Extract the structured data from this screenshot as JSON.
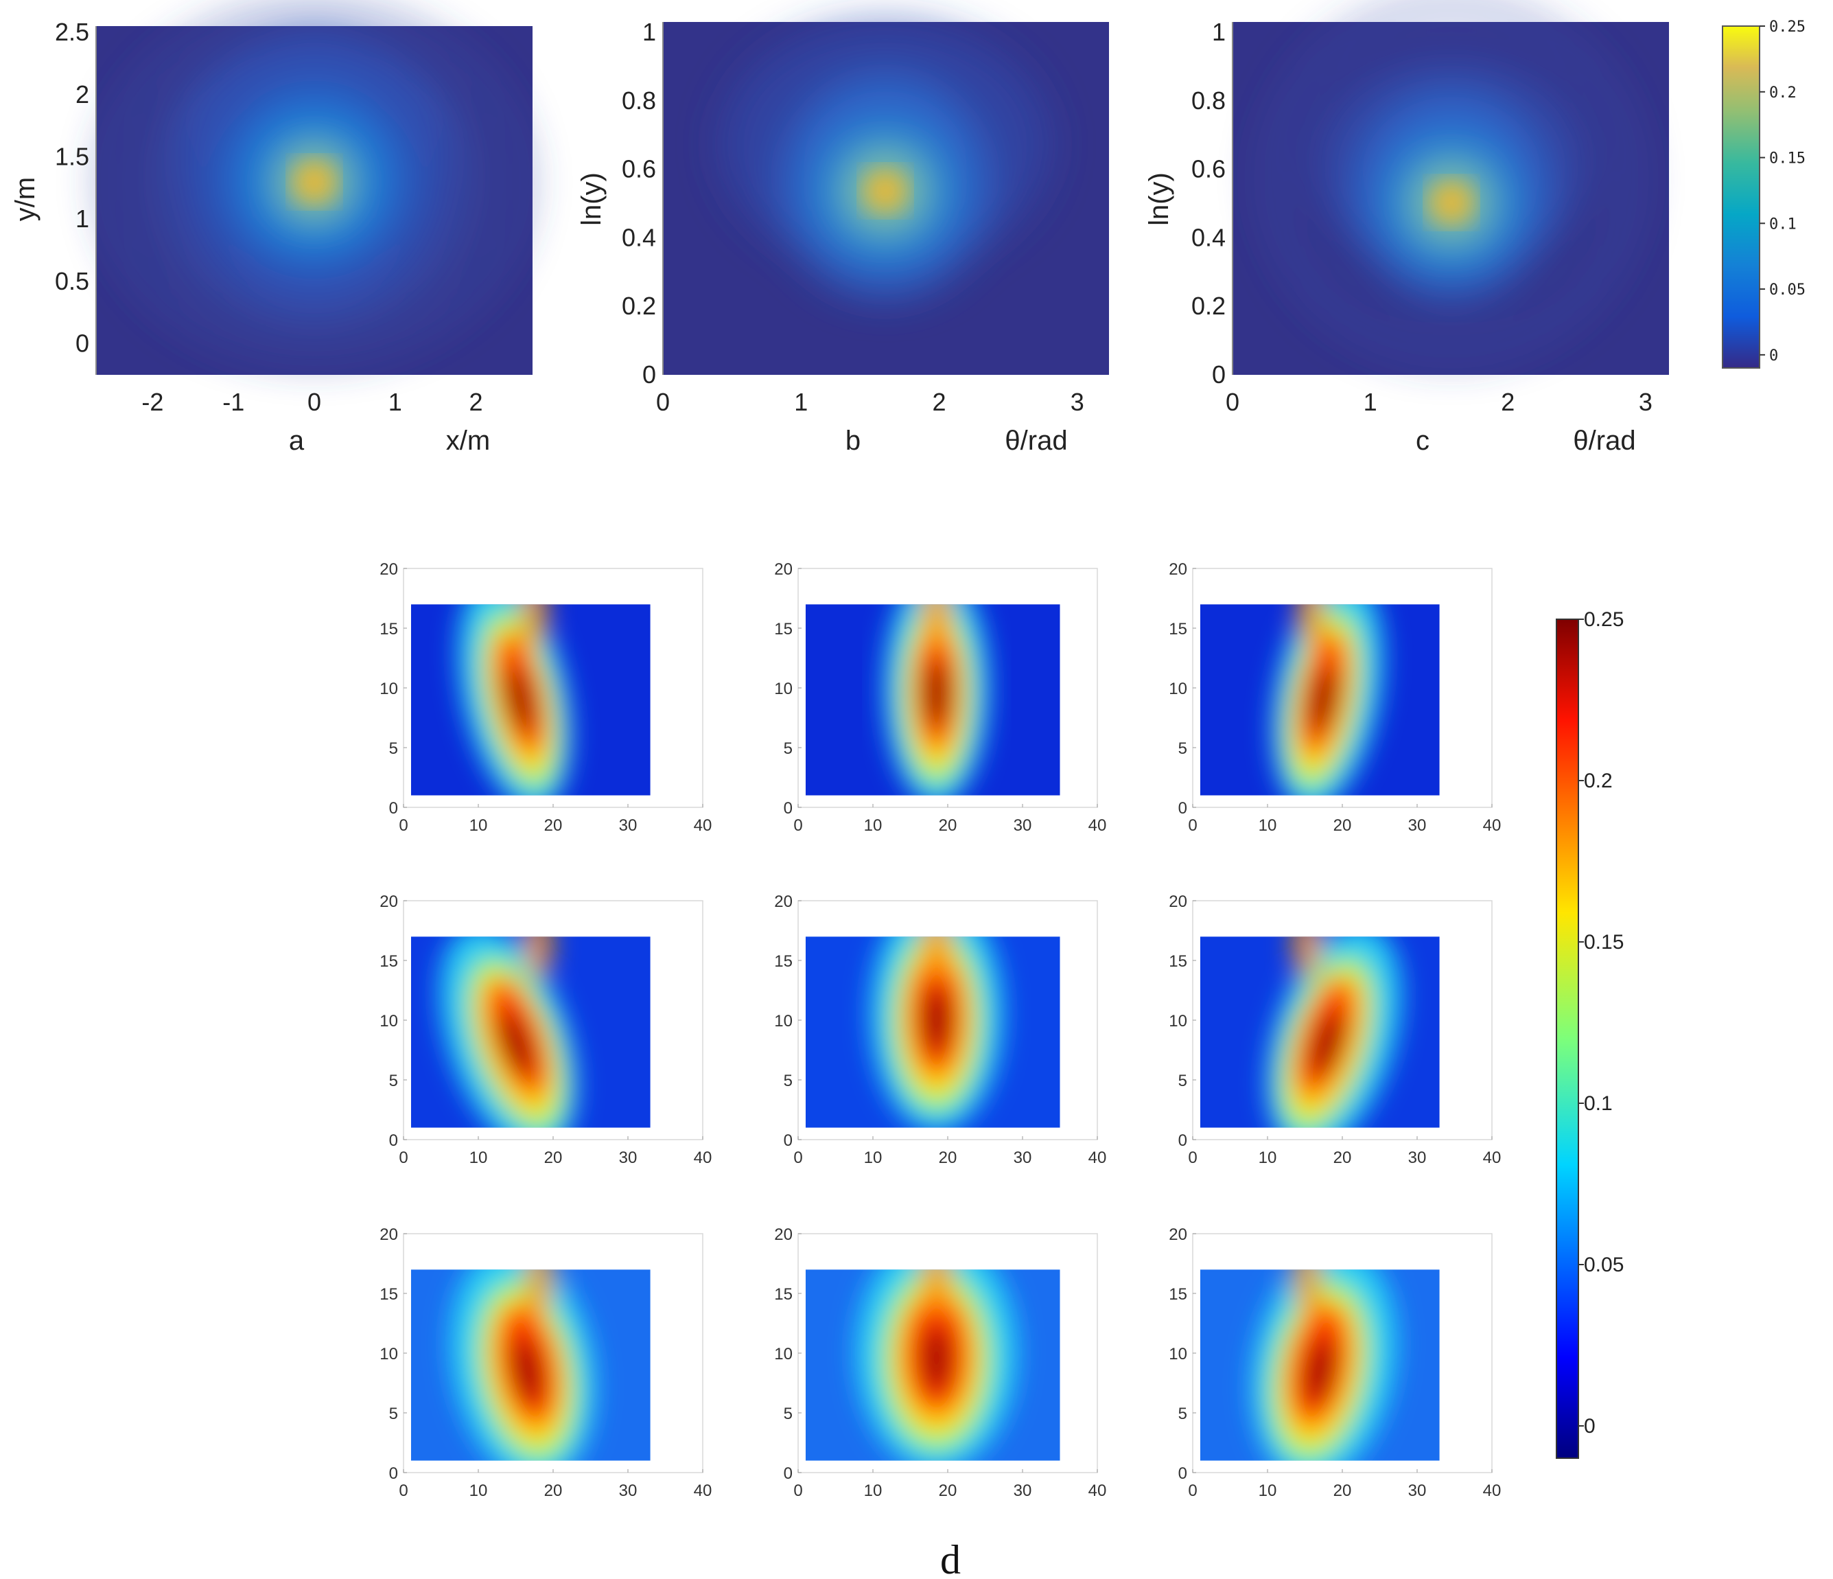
{
  "chart_data": [
    {
      "type": "heatmap",
      "panel": "a",
      "xlabel": "x/m",
      "ylabel": "y/m",
      "x_ticks": [
        "-2",
        "-1",
        "0",
        "1",
        "2"
      ],
      "y_ticks": [
        "0",
        "0.5",
        "1",
        "1.5",
        "2",
        "2.5"
      ],
      "xlim": [
        -2.7,
        2.7
      ],
      "ylim": [
        -0.25,
        2.55
      ],
      "peak": {
        "x": 0.0,
        "y": 1.35,
        "value": 0.22
      },
      "pattern": "concentric rings"
    },
    {
      "type": "heatmap",
      "panel": "b",
      "xlabel": "θ/rad",
      "ylabel": "ln(y)",
      "x_ticks": [
        "0",
        "1",
        "2",
        "3"
      ],
      "y_ticks": [
        "0",
        "0.2",
        "0.4",
        "0.6",
        "0.8",
        "1"
      ],
      "xlim": [
        0,
        3.23
      ],
      "ylim": [
        0,
        1.03
      ],
      "peak": {
        "x": 1.6,
        "y": 0.54,
        "value": 0.21
      }
    },
    {
      "type": "heatmap",
      "panel": "c",
      "xlabel": "θ/rad",
      "ylabel": "ln(y)",
      "x_ticks": [
        "0",
        "1",
        "2",
        "3"
      ],
      "y_ticks": [
        "0",
        "0.2",
        "0.4",
        "0.6",
        "0.8",
        "1"
      ],
      "xlim": [
        0,
        3.17
      ],
      "ylim": [
        0,
        1.03
      ],
      "peak": {
        "x": 1.6,
        "y": 0.49,
        "value": 0.21
      }
    },
    {
      "type": "heatmap",
      "panel": "d",
      "grid": "3x3 subplots",
      "x_ticks": [
        "0",
        "10",
        "20",
        "30",
        "40"
      ],
      "y_ticks": [
        "0",
        "5",
        "10",
        "15",
        "20"
      ],
      "xlim": [
        0,
        40
      ],
      "ylim": [
        0,
        20
      ],
      "subplots": [
        {
          "x_extent": [
            1,
            33
          ],
          "y_extent": [
            1,
            17
          ],
          "peak": {
            "x": 15.5,
            "y": 9,
            "value": 0.25
          }
        },
        {
          "x_extent": [
            1,
            35
          ],
          "y_extent": [
            1,
            17
          ],
          "peak": {
            "x": 18.5,
            "y": 9.5,
            "value": 0.25
          }
        },
        {
          "x_extent": [
            1,
            33
          ],
          "y_extent": [
            1,
            17
          ],
          "peak": {
            "x": 17.5,
            "y": 9,
            "value": 0.25
          }
        },
        {
          "x_extent": [
            1,
            33
          ],
          "y_extent": [
            1,
            17
          ],
          "peak": {
            "x": 15,
            "y": 8,
            "value": 0.25
          }
        },
        {
          "x_extent": [
            1,
            35
          ],
          "y_extent": [
            1,
            17
          ],
          "peak": {
            "x": 18.5,
            "y": 10,
            "value": 0.25
          }
        },
        {
          "x_extent": [
            1,
            33
          ],
          "y_extent": [
            1,
            17
          ],
          "peak": {
            "x": 18,
            "y": 8,
            "value": 0.25
          }
        },
        {
          "x_extent": [
            1,
            33
          ],
          "y_extent": [
            1,
            17
          ],
          "peak": {
            "x": 16.5,
            "y": 8.5,
            "value": 0.25
          }
        },
        {
          "x_extent": [
            1,
            35
          ],
          "y_extent": [
            1,
            17
          ],
          "peak": {
            "x": 18.5,
            "y": 9.5,
            "value": 0.25
          }
        },
        {
          "x_extent": [
            1,
            33
          ],
          "y_extent": [
            1,
            17
          ],
          "peak": {
            "x": 17,
            "y": 8.5,
            "value": 0.25
          }
        }
      ]
    }
  ],
  "colorbar_top": {
    "colormap": "parula",
    "ticks": [
      "0",
      "0.05",
      "0.1",
      "0.15",
      "0.2",
      "0.25"
    ],
    "range": [
      -0.01,
      0.25
    ]
  },
  "colorbar_bottom": {
    "colormap": "jet",
    "ticks": [
      "0",
      "0.05",
      "0.1",
      "0.15",
      "0.2",
      "0.25"
    ],
    "range": [
      -0.01,
      0.25
    ]
  },
  "labels": {
    "a": "a",
    "b": "b",
    "c": "c",
    "d": "d"
  }
}
